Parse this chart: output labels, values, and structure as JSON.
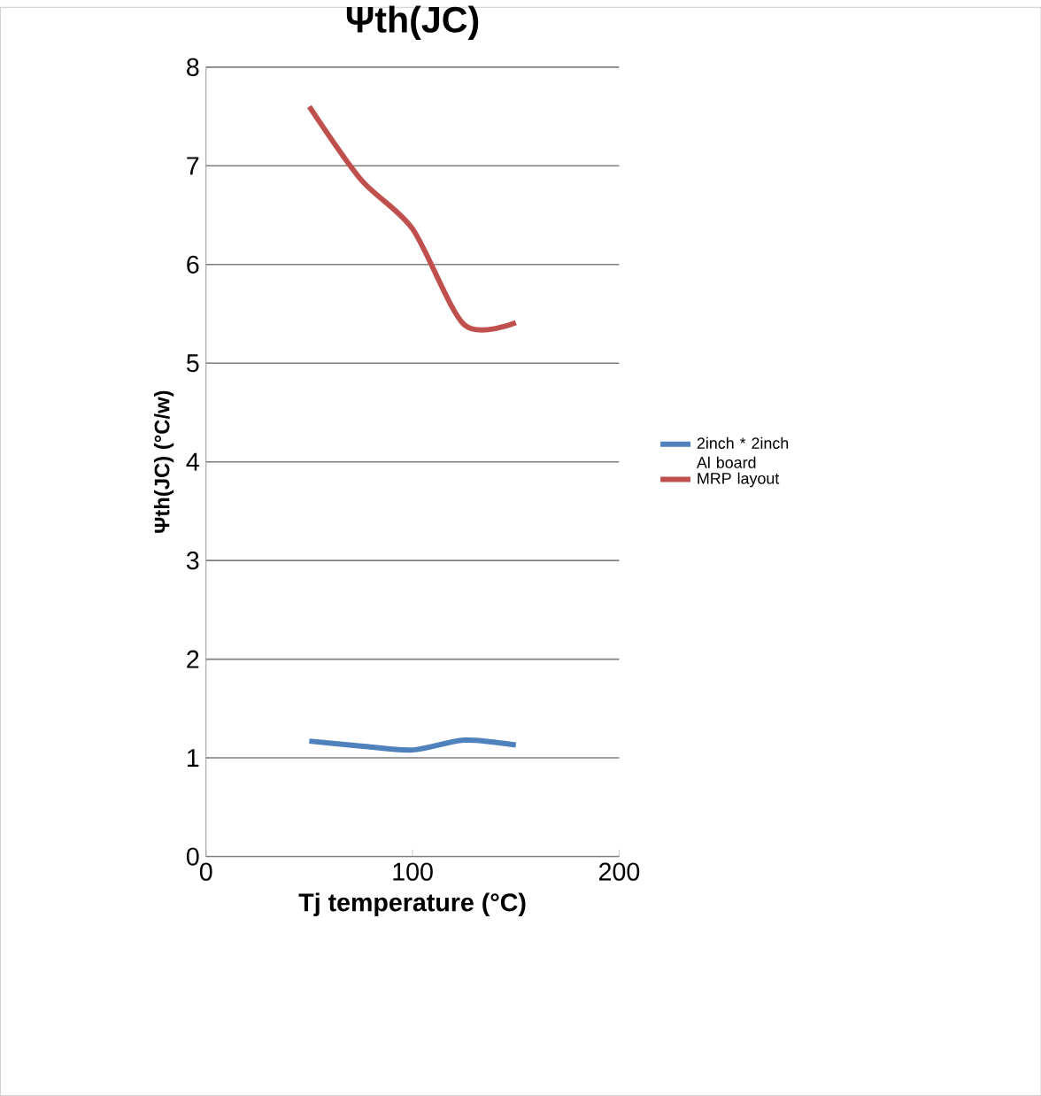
{
  "chart_data": {
    "type": "line",
    "title": "Ψth(JC)",
    "xlabel": "Tj temperature (°C)",
    "ylabel": "Ψth(JC)  (°C/w)",
    "x": [
      50,
      75,
      100,
      125,
      150
    ],
    "series": [
      {
        "name": "2inch * 2inch Al board",
        "color": "#4f81bd",
        "values": [
          1.17,
          1.12,
          1.08,
          1.18,
          1.13
        ]
      },
      {
        "name": "MRP layout",
        "color": "#c0504d",
        "values": [
          7.6,
          6.86,
          6.36,
          5.39,
          5.41
        ]
      }
    ],
    "xlim": [
      0,
      200
    ],
    "xticks": [
      0,
      100,
      200
    ],
    "ylim": [
      0,
      8
    ],
    "yticks": [
      0,
      1,
      2,
      3,
      4,
      5,
      6,
      7,
      8
    ],
    "grid": "y",
    "legend": "right",
    "marker": "none",
    "line_style": "solid"
  }
}
